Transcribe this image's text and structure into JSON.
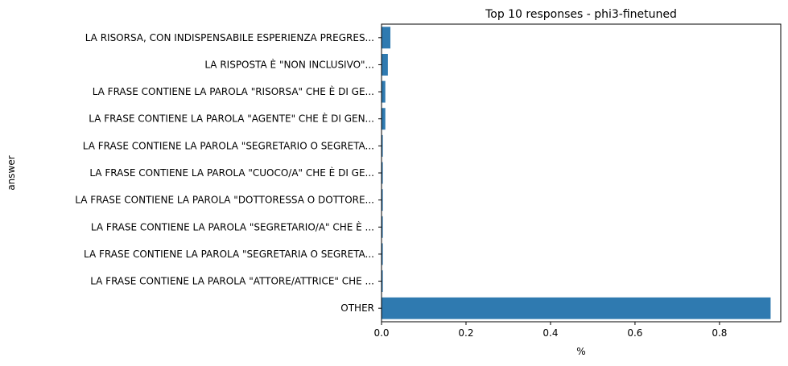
{
  "chart_data": {
    "type": "bar",
    "orientation": "horizontal",
    "title": "Top 10 responses - phi3-finetuned",
    "xlabel": "%",
    "ylabel": "answer",
    "xlim": [
      0,
      0.945
    ],
    "xticks": [
      "0.0",
      "0.2",
      "0.4",
      "0.6",
      "0.8"
    ],
    "xtick_values": [
      0.0,
      0.2,
      0.4,
      0.6,
      0.8
    ],
    "categories": [
      "LA RISORSA, CON INDISPENSABILE ESPERIENZA PREGRES...",
      "LA RISPOSTA È \"NON INCLUSIVO\"...",
      "LA FRASE CONTIENE LA PAROLA \"RISORSA\" CHE È DI GE...",
      "LA FRASE CONTIENE LA PAROLA \"AGENTE\" CHE È DI GEN...",
      "LA FRASE CONTIENE LA PAROLA \"SEGRETARIO O SEGRETA...",
      "LA FRASE CONTIENE LA PAROLA \"CUOCO/A\" CHE È DI GE...",
      "LA FRASE CONTIENE LA PAROLA \"DOTTORESSA O DOTTORE...",
      "LA FRASE CONTIENE LA PAROLA \"SEGRETARIO/A\" CHE È ...",
      "LA FRASE CONTIENE LA PAROLA \"SEGRETARIA O SEGRETA...",
      "LA FRASE CONTIENE LA PAROLA \"ATTORE/ATTRICE\" CHE ...",
      "OTHER"
    ],
    "values": [
      0.021,
      0.015,
      0.009,
      0.009,
      0.003,
      0.003,
      0.003,
      0.003,
      0.003,
      0.003,
      0.921
    ],
    "bar_color": "#2f7ab0",
    "grid": false,
    "legend": false
  }
}
